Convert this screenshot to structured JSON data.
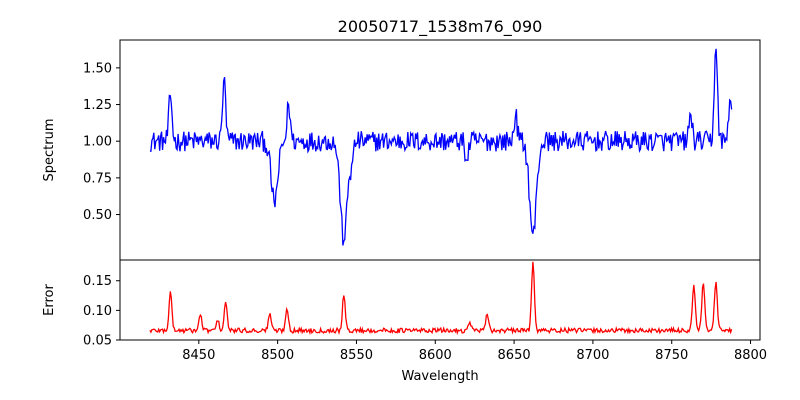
{
  "chart_data": [
    {
      "type": "line",
      "title": "20050717_1538m76_090",
      "xlabel": "",
      "ylabel": "Spectrum",
      "xlim": [
        8400,
        8806
      ],
      "ylim": [
        0.19,
        1.69
      ],
      "yticks": [
        0.5,
        0.75,
        1.0,
        1.25,
        1.5
      ],
      "ytick_labels": [
        "0.50",
        "0.75",
        "1.00",
        "1.25",
        "1.50"
      ],
      "x_range": [
        8419,
        8788
      ],
      "color": "#0000ff",
      "grid": false,
      "features": [
        {
          "x": 8432,
          "y": 1.31
        },
        {
          "x": 8466,
          "y": 1.41
        },
        {
          "x": 8498,
          "y": 0.59
        },
        {
          "x": 8507,
          "y": 1.25
        },
        {
          "x": 8542,
          "y": 0.32
        },
        {
          "x": 8547,
          "y": 0.84
        },
        {
          "x": 8620,
          "y": 0.87
        },
        {
          "x": 8651,
          "y": 1.17
        },
        {
          "x": 8662,
          "y": 0.37
        },
        {
          "x": 8762,
          "y": 1.18
        },
        {
          "x": 8778,
          "y": 1.63
        },
        {
          "x": 8787,
          "y": 1.28
        }
      ]
    },
    {
      "type": "line",
      "xlabel": "Wavelength",
      "ylabel": "Error",
      "xlim": [
        8400,
        8806
      ],
      "ylim": [
        0.05,
        0.185
      ],
      "yticks": [
        0.05,
        0.1,
        0.15
      ],
      "ytick_labels": [
        "0.05",
        "0.10",
        "0.15"
      ],
      "xticks": [
        8450,
        8500,
        8550,
        8600,
        8650,
        8700,
        8750,
        8800
      ],
      "xtick_labels": [
        "8450",
        "8500",
        "8550",
        "8600",
        "8650",
        "8700",
        "8750",
        "8800"
      ],
      "x_range": [
        8419,
        8788
      ],
      "color": "#ff0000",
      "grid": false,
      "features": [
        {
          "x": 8432,
          "y": 0.132
        },
        {
          "x": 8451,
          "y": 0.092
        },
        {
          "x": 8462,
          "y": 0.082
        },
        {
          "x": 8467,
          "y": 0.114
        },
        {
          "x": 8495,
          "y": 0.095
        },
        {
          "x": 8506,
          "y": 0.102
        },
        {
          "x": 8542,
          "y": 0.125
        },
        {
          "x": 8622,
          "y": 0.08
        },
        {
          "x": 8633,
          "y": 0.093
        },
        {
          "x": 8662,
          "y": 0.182
        },
        {
          "x": 8764,
          "y": 0.143
        },
        {
          "x": 8770,
          "y": 0.145
        },
        {
          "x": 8778,
          "y": 0.148
        }
      ]
    }
  ]
}
